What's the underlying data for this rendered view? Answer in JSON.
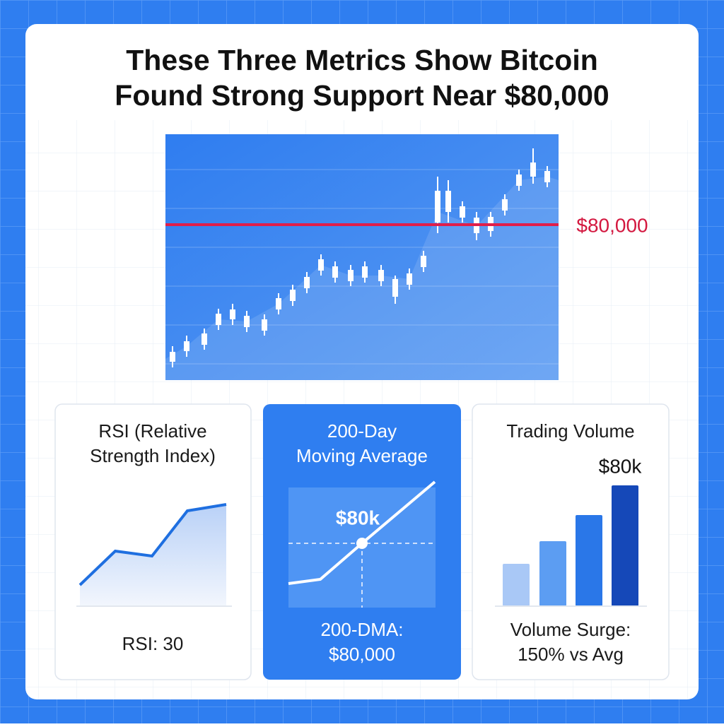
{
  "header": {
    "title_lines": [
      "These Three Metrics Show Bitcoin",
      "Found Strong Support Near $80,000"
    ]
  },
  "main_chart": {
    "support_label": "$80,000"
  },
  "cards": [
    {
      "title_lines": [
        "RSI (Relative",
        "Strength Index)"
      ],
      "caption_lines": [
        "RSI: 30"
      ]
    },
    {
      "title_lines": [
        "200-Day",
        "Moving Average"
      ],
      "marker_label": "$80k",
      "caption_lines": [
        "200-DMA:",
        "$80,000"
      ]
    },
    {
      "title_lines": [
        "Trading Volume"
      ],
      "marker_label": "$80k",
      "caption_lines": [
        "Volume Surge:",
        "150% vs Avg"
      ]
    }
  ]
}
